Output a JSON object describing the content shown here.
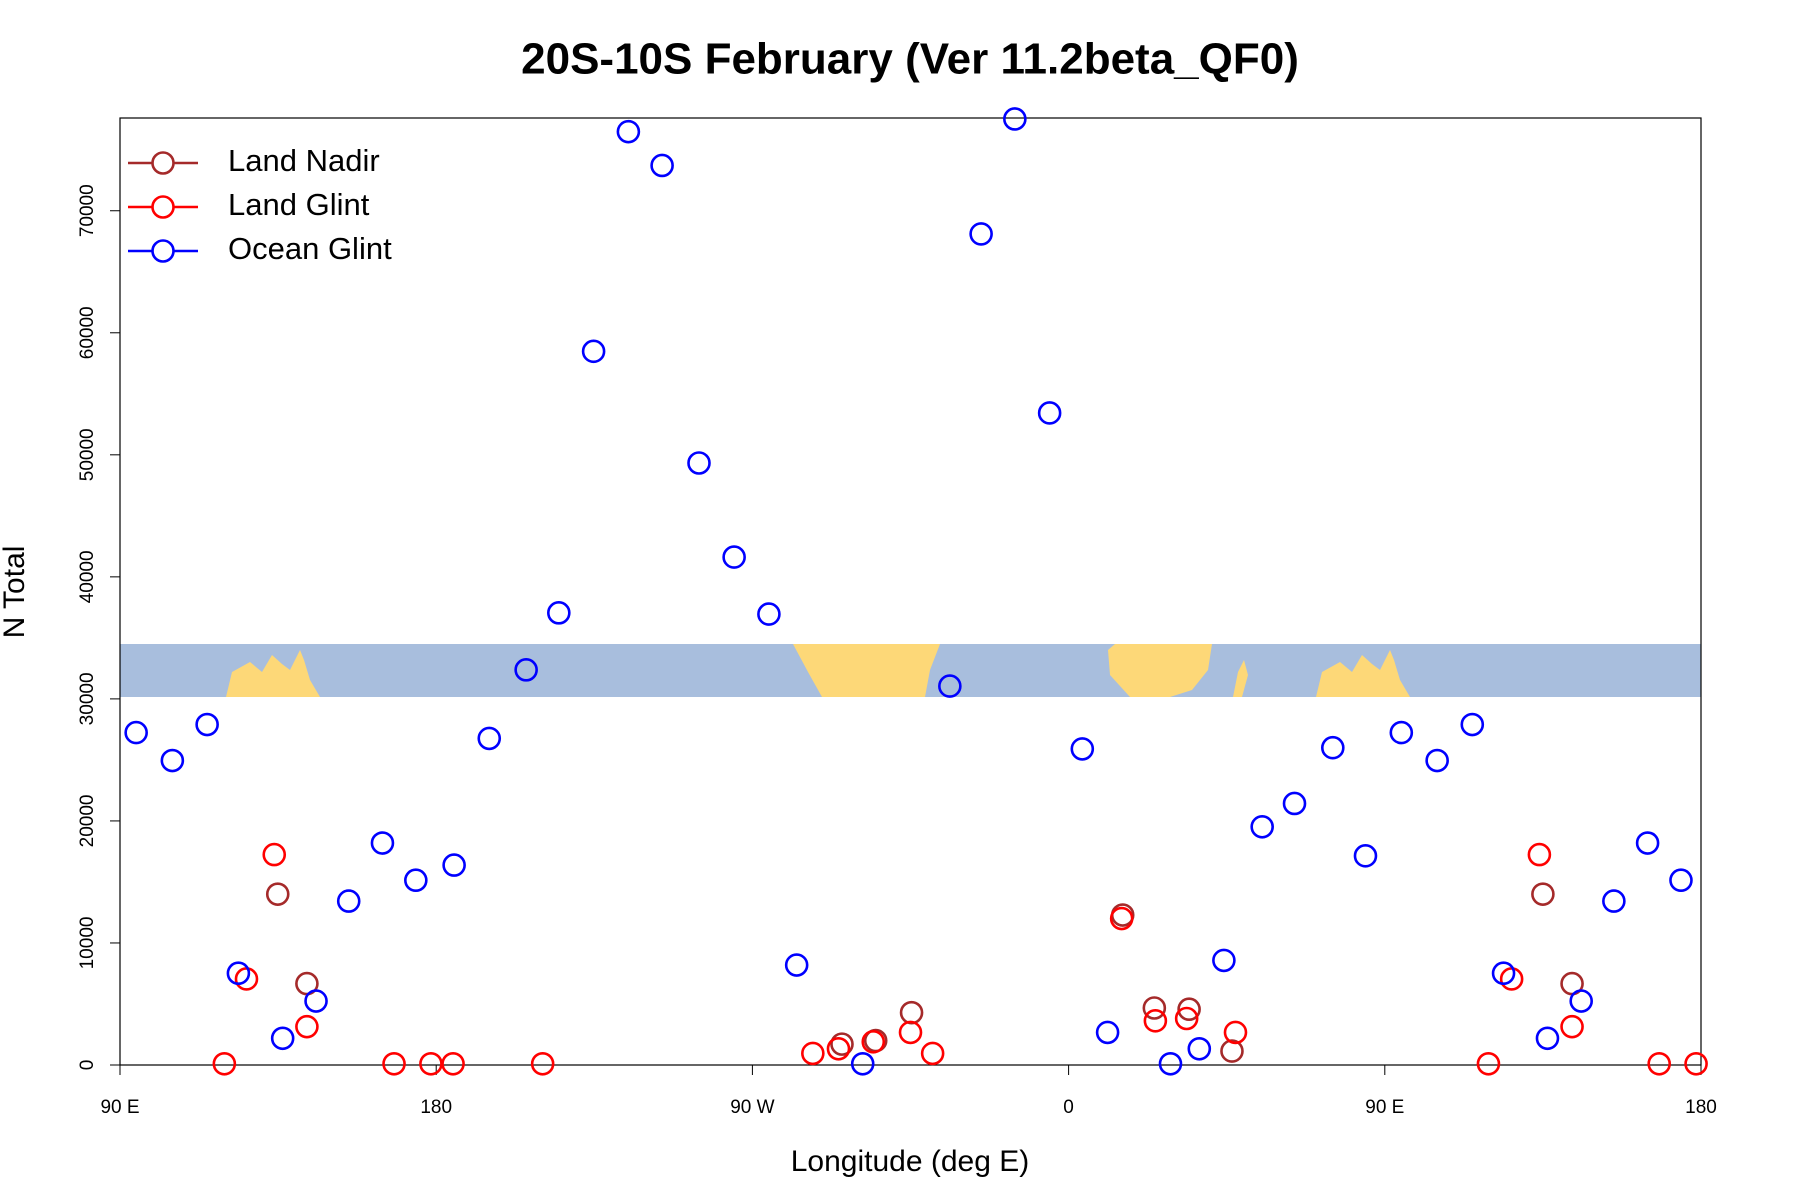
{
  "chart_data": {
    "type": "scatter",
    "title": "20S-10S February (Ver 11.2beta_QF0)",
    "x_label": "Longitude (deg E)",
    "y_label": "N Total",
    "xlim": [
      90,
      540
    ],
    "ylim": [
      0,
      77600
    ],
    "xticks": [
      {
        "value": 90,
        "label": "90 E"
      },
      180,
      {
        "value": 270,
        "label": "90 W"
      },
      {
        "value": 360,
        "label": "0"
      },
      {
        "value": 450,
        "label": "90 E"
      },
      {
        "value": 540,
        "label": "180"
      }
    ],
    "yticks": [
      0,
      10000,
      20000,
      30000,
      40000,
      50000,
      60000,
      70000
    ],
    "legend": "top-left",
    "grid": false,
    "series": [
      {
        "name": "Land Nadir",
        "color": "#a52a2a",
        "x": [
          134.9,
          143.2,
          295.5,
          305.1,
          315.3,
          375.4,
          384.4,
          394.3,
          406.5,
          495.0,
          503.3
        ],
        "values": [
          14000,
          6670,
          1710,
          2000,
          4290,
          12290,
          4670,
          4570,
          1140,
          14000,
          6670
        ]
      },
      {
        "name": "Land Glint",
        "color": "#ff0000",
        "x": [
          119.7,
          126.0,
          133.9,
          143.2,
          168.0,
          178.5,
          184.8,
          210.3,
          287.2,
          294.5,
          304.4,
          315.0,
          321.3,
          375.1,
          384.7,
          393.6,
          407.5,
          479.5,
          486.1,
          494.0,
          503.3,
          528.1,
          538.6
        ],
        "values": [
          100,
          7050,
          17240,
          3140,
          100,
          100,
          100,
          100,
          950,
          1330,
          1900,
          2670,
          950,
          12000,
          3620,
          3810,
          2670,
          100,
          7050,
          17240,
          3140,
          100,
          100
        ]
      },
      {
        "name": "Ocean Glint",
        "color": "#0000ff",
        "x": [
          94.6,
          104.9,
          114.8,
          123.7,
          136.3,
          145.8,
          155.1,
          164.7,
          174.2,
          185.1,
          195.1,
          205.6,
          214.9,
          224.8,
          234.7,
          244.3,
          254.8,
          264.8,
          274.7,
          282.6,
          301.4,
          326.2,
          335.1,
          344.7,
          354.6,
          363.9,
          371.1,
          389.0,
          397.2,
          404.2,
          415.1,
          424.3,
          435.2,
          444.5,
          454.7,
          464.9,
          474.9,
          483.8,
          496.3,
          505.9,
          515.2,
          524.8,
          534.3
        ],
        "values": [
          27240,
          24950,
          27900,
          7520,
          2190,
          5240,
          13430,
          18190,
          15140,
          16380,
          26760,
          32380,
          37050,
          58480,
          76480,
          73710,
          49330,
          41620,
          36950,
          8190,
          100,
          31050,
          68100,
          77520,
          53430,
          25900,
          2670,
          100,
          1330,
          8570,
          19520,
          21430,
          26000,
          17140,
          27240,
          24950,
          27900,
          7520,
          2190,
          5240,
          13430,
          18190,
          15140
        ]
      }
    ]
  }
}
